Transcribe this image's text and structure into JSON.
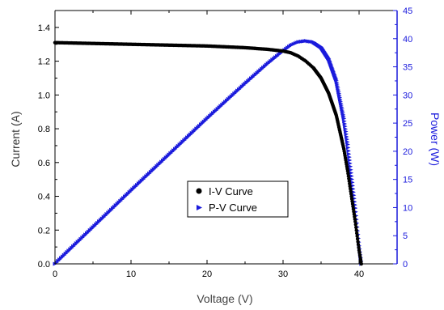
{
  "chart_data": {
    "type": "scatter",
    "xlabel": "Voltage (V)",
    "ylabel_left": "Current (A)",
    "ylabel_right": "Power (W)",
    "xlim": [
      0,
      45
    ],
    "ylim_left": [
      0,
      1.5
    ],
    "ylim_right": [
      0,
      45
    ],
    "x_ticks": [
      "0",
      "10",
      "20",
      "30",
      "40"
    ],
    "y_left_ticks": [
      "0.0",
      "0.2",
      "0.4",
      "0.6",
      "0.8",
      "1.0",
      "1.2",
      "1.4"
    ],
    "y_right_ticks": [
      "0",
      "5",
      "10",
      "15",
      "20",
      "25",
      "30",
      "35",
      "40",
      "45"
    ],
    "grid": false,
    "legend_position": "center",
    "colors": {
      "iv": "#000000",
      "pv": "#1a1adc",
      "right_axis": "#1a1adc"
    },
    "series": [
      {
        "name": "I-V Curve",
        "axis": "left",
        "marker": "circle",
        "x": [
          0,
          5,
          10,
          15,
          20,
          25,
          28,
          30,
          31,
          32,
          33,
          34,
          35,
          36,
          37,
          38,
          38.5,
          39,
          39.5,
          40,
          40.3
        ],
        "y": [
          1.31,
          1.305,
          1.3,
          1.295,
          1.29,
          1.28,
          1.27,
          1.26,
          1.25,
          1.23,
          1.2,
          1.16,
          1.1,
          1.01,
          0.88,
          0.68,
          0.55,
          0.4,
          0.25,
          0.08,
          0.0
        ]
      },
      {
        "name": "P-V Curve",
        "axis": "right",
        "marker": "triangle",
        "x": [
          0,
          5,
          10,
          15,
          20,
          25,
          28,
          30,
          31,
          32,
          33,
          34,
          35,
          36,
          37,
          38,
          38.5,
          39,
          39.5,
          40,
          40.3
        ],
        "y": [
          0,
          6.5,
          13.0,
          19.4,
          25.8,
          32.0,
          35.6,
          37.8,
          38.8,
          39.4,
          39.6,
          39.4,
          38.5,
          36.4,
          32.6,
          25.8,
          21.2,
          15.6,
          9.9,
          3.2,
          0.0
        ]
      }
    ]
  }
}
